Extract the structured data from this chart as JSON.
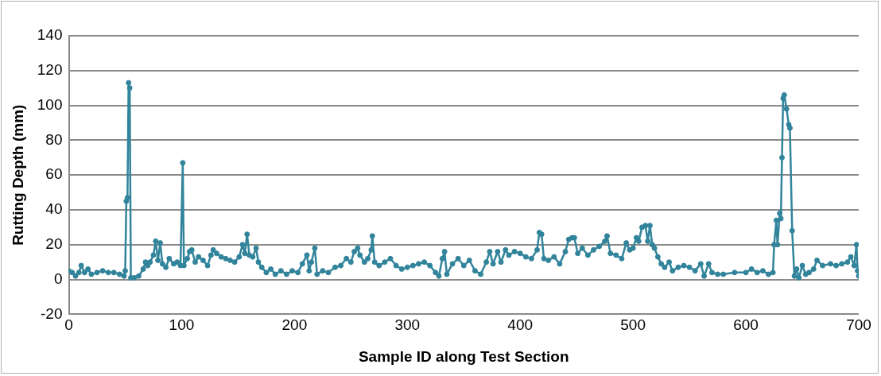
{
  "chart_data": {
    "type": "line",
    "xlabel": "Sample ID along Test Section",
    "ylabel": "Rutting Depth (mm)",
    "xlim": [
      0,
      700
    ],
    "xticks": [
      0,
      100,
      200,
      300,
      400,
      500,
      600,
      700
    ],
    "ylim": [
      -20,
      140
    ],
    "yticks": [
      -20,
      0,
      20,
      40,
      60,
      80,
      100,
      120,
      140
    ],
    "grid": "y",
    "legend": false,
    "marker": "circle",
    "line_style": "solid",
    "series": [
      {
        "color": "#31849b",
        "x": [
          0,
          3,
          6,
          9,
          11,
          14,
          17,
          20,
          25,
          30,
          35,
          40,
          45,
          49,
          50,
          51,
          52,
          53,
          54,
          55,
          58,
          62,
          66,
          68,
          70,
          72,
          75,
          77,
          79,
          81,
          83,
          86,
          89,
          93,
          96,
          99,
          101,
          102,
          105,
          107,
          109,
          112,
          115,
          119,
          123,
          126,
          128,
          131,
          135,
          139,
          143,
          147,
          151,
          154,
          156,
          158,
          160,
          163,
          166,
          168,
          171,
          175,
          179,
          183,
          188,
          193,
          198,
          203,
          207,
          211,
          213,
          215,
          218,
          220,
          225,
          230,
          236,
          241,
          246,
          250,
          253,
          256,
          258,
          262,
          265,
          268,
          269,
          271,
          275,
          280,
          285,
          290,
          295,
          300,
          305,
          310,
          315,
          320,
          325,
          328,
          331,
          333,
          335,
          340,
          345,
          350,
          355,
          360,
          365,
          370,
          373,
          376,
          380,
          383,
          387,
          390,
          395,
          400,
          405,
          410,
          415,
          417,
          419,
          421,
          425,
          430,
          435,
          440,
          443,
          446,
          448,
          451,
          455,
          460,
          465,
          470,
          475,
          477,
          480,
          485,
          490,
          494,
          497,
          500,
          503,
          505,
          508,
          511,
          513,
          515,
          517,
          519,
          522,
          525,
          528,
          532,
          535,
          540,
          545,
          550,
          555,
          560,
          563,
          567,
          570,
          575,
          580,
          590,
          600,
          605,
          610,
          615,
          620,
          624,
          625,
          627,
          628,
          630,
          631,
          632,
          633,
          634,
          636,
          638,
          639,
          641,
          643,
          645,
          647,
          650,
          653,
          656,
          660,
          663,
          668,
          675,
          680,
          685,
          690,
          693,
          696,
          698,
          699,
          700
        ],
        "values": [
          5,
          4,
          2,
          4,
          8,
          4,
          6,
          3,
          4,
          5,
          4,
          4,
          3,
          2,
          5,
          45,
          47,
          113,
          110,
          1,
          1,
          2,
          6,
          10,
          8,
          10,
          14,
          22,
          11,
          21,
          9,
          7,
          12,
          9,
          10,
          8,
          67,
          8,
          12,
          16,
          17,
          10,
          13,
          11,
          8,
          14,
          17,
          15,
          13,
          12,
          11,
          10,
          13,
          20,
          15,
          26,
          14,
          13,
          18,
          10,
          7,
          4,
          6,
          3,
          5,
          3,
          5,
          4,
          9,
          14,
          5,
          10,
          18,
          3,
          5,
          4,
          7,
          8,
          12,
          10,
          16,
          18,
          14,
          10,
          12,
          17,
          25,
          10,
          8,
          10,
          12,
          8,
          6,
          7,
          8,
          9,
          10,
          8,
          4,
          2,
          12,
          16,
          3,
          9,
          12,
          8,
          11,
          5,
          3,
          10,
          16,
          9,
          16,
          10,
          17,
          14,
          16,
          15,
          13,
          12,
          17,
          27,
          26,
          12,
          11,
          13,
          9,
          16,
          23,
          24,
          24,
          15,
          18,
          14,
          17,
          19,
          22,
          25,
          15,
          14,
          12,
          21,
          17,
          18,
          24,
          22,
          30,
          31,
          22,
          31,
          20,
          18,
          13,
          9,
          7,
          10,
          5,
          7,
          8,
          7,
          5,
          9,
          2,
          9,
          4,
          3,
          3,
          4,
          4,
          6,
          4,
          5,
          3,
          4,
          20,
          34,
          20,
          38,
          35,
          70,
          104,
          106,
          98,
          89,
          87,
          28,
          2,
          6,
          1,
          8,
          3,
          4,
          6,
          11,
          8,
          9,
          8,
          9,
          10,
          13,
          8,
          20,
          5,
          2
        ]
      }
    ]
  }
}
